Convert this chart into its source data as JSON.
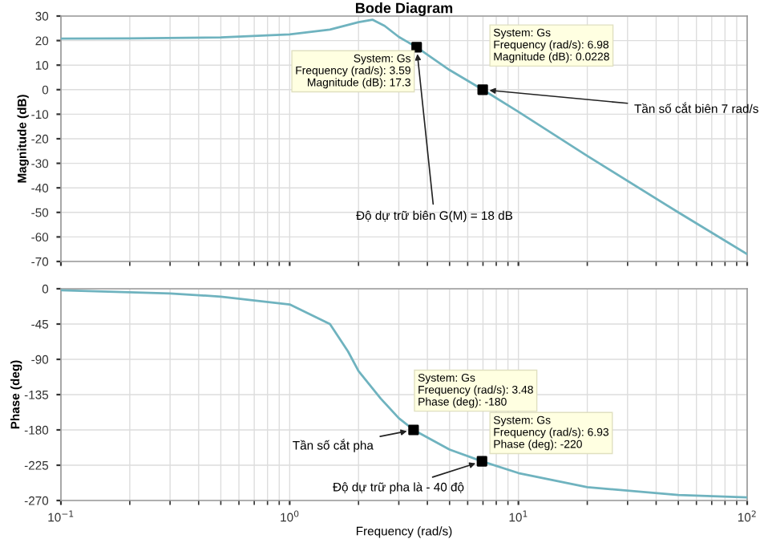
{
  "chart_data": [
    {
      "type": "line",
      "title": "Bode Diagram",
      "ylabel": "Magnitude (dB)",
      "log": "x",
      "grid": true,
      "tick_labels": "y",
      "xlim": [
        0.1,
        100
      ],
      "xticks": [
        {
          "value": 0.1,
          "label": null
        },
        {
          "value": 1,
          "label": null
        },
        {
          "value": 10,
          "label": null
        },
        {
          "value": 100,
          "label": null
        }
      ],
      "ylim": [
        -70,
        30
      ],
      "yticks": [
        -70,
        -60,
        -50,
        -40,
        -30,
        -20,
        -10,
        0,
        10,
        20,
        30
      ],
      "series": [
        {
          "color": "#6fb3bf",
          "x": [
            0.1,
            0.2,
            0.5,
            1,
            1.5,
            2,
            2.3,
            2.6,
            3,
            3.59,
            5,
            6.98,
            10,
            20,
            50,
            100
          ],
          "values": [
            20.8,
            20.9,
            21.3,
            22.5,
            24.5,
            27.5,
            28.5,
            26,
            21.5,
            17.3,
            8,
            0,
            -9,
            -27,
            -50,
            -67
          ]
        },
        {
          "type": "scatter",
          "marker": "square",
          "color": "#000000",
          "x": [
            3.59,
            6.98
          ],
          "values": [
            17.3,
            0
          ]
        }
      ],
      "annotations": [
        "System: Gs\nFrequency (rad/s): 3.59\nMagnitude (dB): 17.3",
        "System: Gs\nFrequency (rad/s): 6.98\nMagnitude (dB): 0.0228",
        {
          "text": "Độ dự trữ biên G(M) = 18 dB",
          "x": 3.59,
          "y": 17.3
        },
        {
          "text": "Tần số cắt biên 7 rad/s",
          "x": 6.98,
          "y": 0
        }
      ]
    },
    {
      "type": "line",
      "ylabel": "Phase (deg)",
      "xlabel": "Frequency (rad/s)",
      "log": "x",
      "grid": true,
      "xlim": [
        0.1,
        100
      ],
      "xticks": [
        {
          "value": 0.1,
          "label": "10$^{−1}$"
        },
        {
          "value": 1,
          "label": "10$^{0}$"
        },
        {
          "value": 10,
          "label": "10$^{1}$"
        },
        {
          "value": 100,
          "label": "10$^{2}$"
        }
      ],
      "ylim": [
        -270,
        0
      ],
      "yticks": [
        -270,
        -225,
        -180,
        -135,
        -90,
        -45,
        0
      ],
      "series": [
        {
          "color": "#6fb3bf",
          "x": [
            0.1,
            0.3,
            0.5,
            1,
            1.5,
            1.8,
            2,
            2.5,
            3,
            3.48,
            5,
            6.93,
            10,
            20,
            50,
            100
          ],
          "values": [
            -2,
            -6,
            -10,
            -20,
            -45,
            -80,
            -105,
            -140,
            -165,
            -180,
            -205,
            -220,
            -235,
            -253,
            -263,
            -266
          ]
        },
        {
          "type": "scatter",
          "marker": "square",
          "color": "#000000",
          "x": [
            3.48,
            6.93
          ],
          "values": [
            -180,
            -220
          ]
        }
      ],
      "annotations": [
        "System: Gs\nFrequency (rad/s): 3.48\nPhase (deg): -180",
        "System: Gs\nFrequency (rad/s): 6.93\nPhase (deg): -220",
        {
          "text": "Tần số cắt pha",
          "x": 3.48,
          "y": -180
        },
        {
          "text": "Độ dự trữ pha là - 40 độ",
          "x": 6.93,
          "y": -220
        }
      ]
    }
  ]
}
